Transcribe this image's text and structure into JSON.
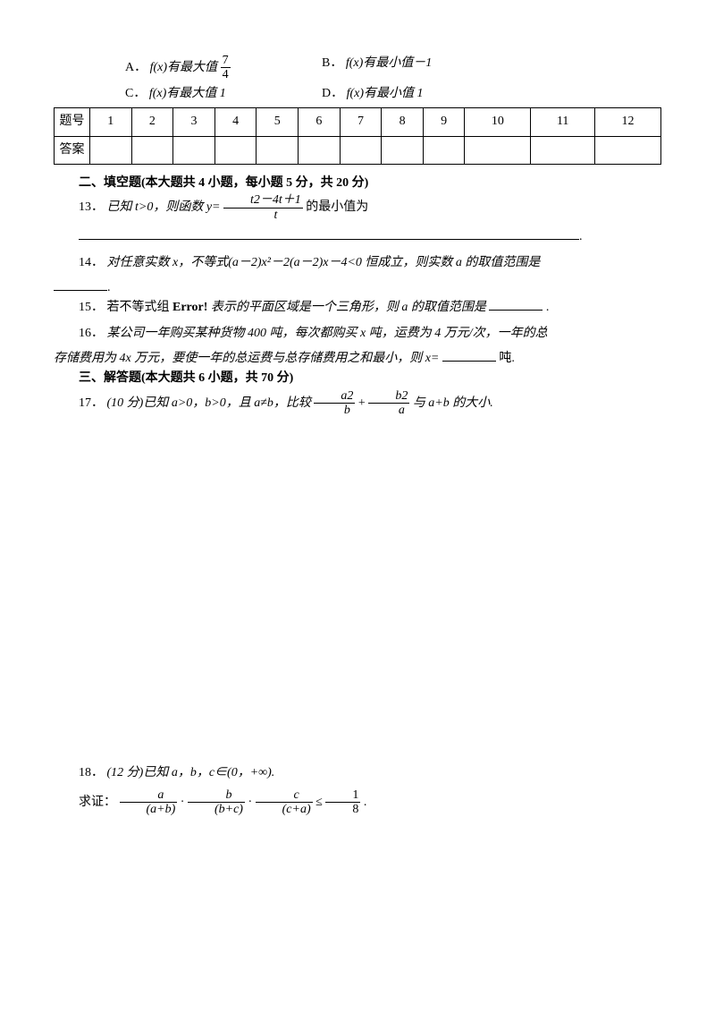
{
  "choices_line1": {
    "A": "A．",
    "A_text_pre": "f(x)有最大值",
    "A_frac_num": "7",
    "A_frac_den": "4",
    "B": "B．",
    "B_text": "f(x)有最小值－1"
  },
  "choices_line2": {
    "C": "C．",
    "C_text": "f(x)有最大值 1",
    "D": "D．",
    "D_text": "f(x)有最小值 1"
  },
  "table": {
    "row1_label": "题号",
    "cols": [
      "1",
      "2",
      "3",
      "4",
      "5",
      "6",
      "7",
      "8",
      "9",
      "10",
      "11",
      "12"
    ],
    "row2_label": "答案"
  },
  "section2_title": "二、填空题(本大题共 4 小题，每小题 5 分，共 20 分)",
  "q13": {
    "num": "13．",
    "pre": "已知 t>0，则函数 y=",
    "frac_num": "t2－4t＋1",
    "frac_den": "t",
    "post": "的最小值为"
  },
  "q14": {
    "num": "14．",
    "text": "对任意实数 x，不等式(a－2)x²－2(a－2)x－4<0 恒成立，则实数 a 的取值范围是",
    "blank_end": "."
  },
  "q15": {
    "num": "15．",
    "pre": "若不等式组",
    "err": "Error!",
    "post": "表示的平面区域是一个三角形，则 a 的取值范围是",
    "end": "."
  },
  "q16": {
    "num": "16．",
    "line1": "某公司一年购买某种货物 400 吨，每次都购买 x 吨，运费为 4 万元/次，一年的总",
    "line2": "存储费用为 4x 万元，要使一年的总运费与总存储费用之和最小，则 x=",
    "line2_end": "吨."
  },
  "section3_title": "三、解答题(本大题共 6 小题，共 70 分)",
  "q17": {
    "num": "17．",
    "pre": "(10 分)已知 a>0，b>0，且 a≠b，比较",
    "frac1_num": "a2",
    "frac1_den": "b",
    "plus": "+",
    "frac2_num": "b2",
    "frac2_den": "a",
    "post": "与 a+b 的大小."
  },
  "q18": {
    "num": "18．",
    "line1": "(12 分)已知 a，b，c∈(0，+∞).",
    "line2_pre": "求证：",
    "f1_num": "a",
    "f1_den": "(a+b)",
    "dot": "·",
    "f2_num": "b",
    "f2_den": "(b+c)",
    "f3_num": "c",
    "f3_den": "(c+a)",
    "le": "≤",
    "f4_num": "1",
    "f4_den": "8",
    "end": "."
  }
}
